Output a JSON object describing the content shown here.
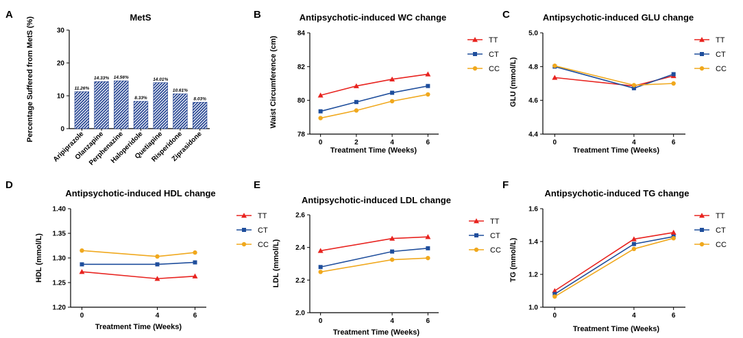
{
  "colors": {
    "TT": "#e8231f",
    "CT": "#1f4e9c",
    "CC": "#f0a81d",
    "bar": "#1f3f8f"
  },
  "chart_data": [
    {
      "id": "A",
      "panel_label": "A",
      "type": "bar",
      "title": "MetS",
      "ylabel": "Percentage  Suffered from MetS (%)",
      "xlabel": "",
      "ylim": [
        0,
        30
      ],
      "yticks": [
        "0",
        "10",
        "20",
        "30"
      ],
      "categories": [
        "Aripiprazole",
        "Olanzapine",
        "Perphenazine",
        "Haloperidole",
        "Quetiapine",
        "Risperidone",
        "Ziprasidone"
      ],
      "values": [
        11.26,
        14.33,
        14.56,
        8.33,
        14.01,
        10.61,
        8.03
      ],
      "data_labels": [
        "11.26%",
        "14.33%",
        "14.56%",
        "8.33%",
        "14.01%",
        "10.61%",
        "8.03%"
      ]
    },
    {
      "id": "B",
      "panel_label": "B",
      "type": "line",
      "title": "Antipsychotic-induced WC change",
      "ylabel": "Waist Circumference (cm)",
      "xlabel": "Treatment Time (Weeks)",
      "xlim": [
        -0.6,
        6.6
      ],
      "x": [
        0,
        2,
        4,
        6
      ],
      "xticks": [
        "0",
        "2",
        "4",
        "6"
      ],
      "ylim": [
        78,
        84
      ],
      "yticks": [
        "78",
        "80",
        "82",
        "84"
      ],
      "series": [
        {
          "name": "TT",
          "values": [
            80.3,
            80.85,
            81.25,
            81.55
          ]
        },
        {
          "name": "CT",
          "values": [
            79.35,
            79.9,
            80.45,
            80.85
          ]
        },
        {
          "name": "CC",
          "values": [
            78.95,
            79.4,
            79.95,
            80.35
          ]
        }
      ]
    },
    {
      "id": "C",
      "panel_label": "C",
      "type": "line",
      "title": "Antipsychotic-induced GLU change",
      "ylabel": "GLU (mmol/L)",
      "xlabel": "Treatment Time (Weeks)",
      "xlim": [
        -0.6,
        6.6
      ],
      "x": [
        0,
        4,
        6
      ],
      "xticks": [
        "0",
        "4",
        "6"
      ],
      "ylim": [
        4.4,
        5.0
      ],
      "yticks": [
        "4.4",
        "4.6",
        "4.8",
        "5.0"
      ],
      "series": [
        {
          "name": "TT",
          "values": [
            4.735,
            4.685,
            4.745
          ]
        },
        {
          "name": "CT",
          "values": [
            4.8,
            4.672,
            4.755
          ]
        },
        {
          "name": "CC",
          "values": [
            4.805,
            4.69,
            4.7
          ]
        }
      ]
    },
    {
      "id": "D",
      "panel_label": "D",
      "type": "line",
      "title": "Antipsychotic-induced HDL change",
      "ylabel": "HDL (mmol/L)",
      "xlabel": "Treatment Time (Weeks)",
      "xlim": [
        -0.6,
        6.6
      ],
      "x": [
        0,
        4,
        6
      ],
      "xticks": [
        "0",
        "4",
        "6"
      ],
      "ylim": [
        1.2,
        1.4
      ],
      "yticks": [
        "1.20",
        "1.25",
        "1.30",
        "1.35",
        "1.40"
      ],
      "series": [
        {
          "name": "TT",
          "values": [
            1.272,
            1.258,
            1.263
          ]
        },
        {
          "name": "CT",
          "values": [
            1.287,
            1.287,
            1.291
          ]
        },
        {
          "name": "CC",
          "values": [
            1.315,
            1.303,
            1.311
          ]
        }
      ]
    },
    {
      "id": "E",
      "panel_label": "E",
      "type": "line",
      "title": "Antipsychotic-induced LDL change",
      "ylabel": "LDL (mmol/L)",
      "xlabel": "Treatment Time (Weeks)",
      "xlim": [
        -0.6,
        6.6
      ],
      "x": [
        0,
        4,
        6
      ],
      "xticks": [
        "0",
        "4",
        "6"
      ],
      "ylim": [
        2.0,
        2.6
      ],
      "yticks": [
        "2.0",
        "2.2",
        "2.4",
        "2.6"
      ],
      "series": [
        {
          "name": "TT",
          "values": [
            2.38,
            2.455,
            2.465
          ]
        },
        {
          "name": "CT",
          "values": [
            2.28,
            2.375,
            2.395
          ]
        },
        {
          "name": "CC",
          "values": [
            2.25,
            2.325,
            2.335
          ]
        }
      ]
    },
    {
      "id": "F",
      "panel_label": "F",
      "type": "line",
      "title": "Antipsychotic-induced TG change",
      "ylabel": "TG (mmol/L)",
      "xlabel": "Treatment Time (Weeks)",
      "xlim": [
        -0.6,
        6.6
      ],
      "x": [
        0,
        4,
        6
      ],
      "xticks": [
        "0",
        "4",
        "6"
      ],
      "ylim": [
        1.0,
        1.6
      ],
      "yticks": [
        "1.0",
        "1.2",
        "1.4",
        "1.6"
      ],
      "series": [
        {
          "name": "TT",
          "values": [
            1.1,
            1.415,
            1.455
          ]
        },
        {
          "name": "CT",
          "values": [
            1.08,
            1.385,
            1.43
          ]
        },
        {
          "name": "CC",
          "values": [
            1.065,
            1.355,
            1.42
          ]
        }
      ]
    }
  ]
}
